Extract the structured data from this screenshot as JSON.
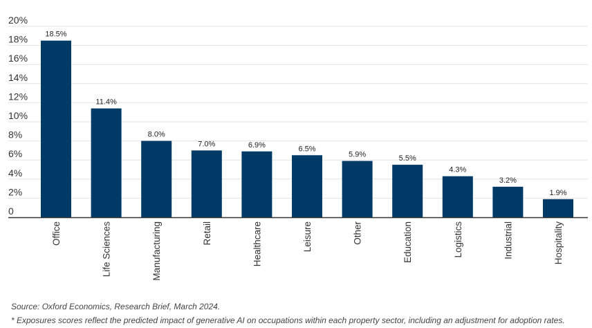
{
  "chart_data": {
    "type": "bar",
    "categories": [
      "Office",
      "Life Sciences",
      "Manufacturing",
      "Retail",
      "Healthcare",
      "Leisure",
      "Other",
      "Education",
      "Logistics",
      "Industrial",
      "Hospitality"
    ],
    "values": [
      18.5,
      11.4,
      8.0,
      7.0,
      6.9,
      6.5,
      5.9,
      5.5,
      4.3,
      3.2,
      1.9
    ],
    "data_labels": [
      "18.5%",
      "11.4%",
      "8.0%",
      "7.0%",
      "6.9%",
      "6.5%",
      "5.9%",
      "5.5%",
      "4.3%",
      "3.2%",
      "1.9%"
    ],
    "y_ticks": [
      {
        "value": 0,
        "label": "0"
      },
      {
        "value": 2,
        "label": "2%"
      },
      {
        "value": 4,
        "label": "4%"
      },
      {
        "value": 6,
        "label": "6%"
      },
      {
        "value": 8,
        "label": "8%"
      },
      {
        "value": 10,
        "label": "10%"
      },
      {
        "value": 12,
        "label": "12%"
      },
      {
        "value": 14,
        "label": "14%"
      },
      {
        "value": 16,
        "label": "16%"
      },
      {
        "value": 18,
        "label": "18%"
      },
      {
        "value": 20,
        "label": "20%"
      }
    ],
    "ylim": [
      0,
      20
    ],
    "title": "",
    "xlabel": "",
    "ylabel": "",
    "grid": true,
    "bar_color": "#003a66",
    "grid_color": "#e3e3e3",
    "axis_color": "#333333"
  },
  "notes": {
    "source": "Source: Oxford Economics, Research Brief, March 2024.",
    "footnote": "* Exposures scores reflect the predicted impact of generative AI on occupations within each property sector, including an adjustment for adoption rates."
  }
}
